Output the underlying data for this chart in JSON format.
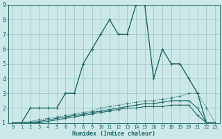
{
  "xlabel": "Humidex (Indice chaleur)",
  "xlim": [
    -0.5,
    23.5
  ],
  "ylim": [
    1,
    9
  ],
  "xticks": [
    0,
    1,
    2,
    3,
    4,
    5,
    6,
    7,
    8,
    9,
    10,
    11,
    12,
    13,
    14,
    15,
    16,
    17,
    18,
    19,
    20,
    21,
    22,
    23
  ],
  "yticks": [
    1,
    2,
    3,
    4,
    5,
    6,
    7,
    8,
    9
  ],
  "bg_color": "#cde8e8",
  "grid_color": "#a0c8c8",
  "line_color": "#1a6666",
  "line1_x": [
    0,
    1,
    2,
    3,
    4,
    5,
    6,
    7,
    8,
    9,
    10,
    11,
    12,
    13,
    14,
    15,
    16,
    17,
    18,
    19,
    20,
    21,
    22,
    23
  ],
  "line1_y": [
    1,
    1,
    2,
    2,
    2,
    2,
    3,
    3,
    5,
    6,
    7,
    8,
    7,
    7,
    9,
    9,
    4,
    6,
    5,
    5,
    4,
    3,
    1,
    1
  ],
  "line2_x": [
    0,
    1,
    2,
    3,
    4,
    5,
    6,
    7,
    8,
    9,
    10,
    11,
    12,
    13,
    14,
    15,
    16,
    17,
    18,
    19,
    20,
    21,
    22,
    23
  ],
  "line2_y": [
    1.0,
    1.0,
    1.1,
    1.2,
    1.3,
    1.4,
    1.5,
    1.6,
    1.7,
    1.8,
    2.0,
    2.1,
    2.2,
    2.3,
    2.4,
    2.5,
    2.5,
    2.6,
    2.7,
    2.8,
    3.0,
    3.0,
    2.0,
    1.0
  ],
  "line3_x": [
    0,
    1,
    2,
    3,
    4,
    5,
    6,
    7,
    8,
    9,
    10,
    11,
    12,
    13,
    14,
    15,
    16,
    17,
    18,
    19,
    20,
    21,
    22,
    23
  ],
  "line3_y": [
    1.0,
    1.0,
    1.0,
    1.1,
    1.2,
    1.3,
    1.4,
    1.5,
    1.6,
    1.7,
    1.8,
    1.9,
    2.0,
    2.1,
    2.2,
    2.3,
    2.3,
    2.4,
    2.5,
    2.5,
    2.5,
    2.0,
    1.0,
    1.0
  ],
  "line4_x": [
    0,
    1,
    2,
    3,
    4,
    5,
    6,
    7,
    8,
    9,
    10,
    11,
    12,
    13,
    14,
    15,
    16,
    17,
    18,
    19,
    20,
    21,
    22,
    23
  ],
  "line4_y": [
    1.0,
    1.0,
    1.0,
    1.0,
    1.1,
    1.2,
    1.3,
    1.4,
    1.5,
    1.6,
    1.7,
    1.8,
    1.9,
    2.0,
    2.0,
    2.1,
    2.1,
    2.1,
    2.2,
    2.2,
    2.2,
    1.5,
    1.0,
    1.0
  ]
}
